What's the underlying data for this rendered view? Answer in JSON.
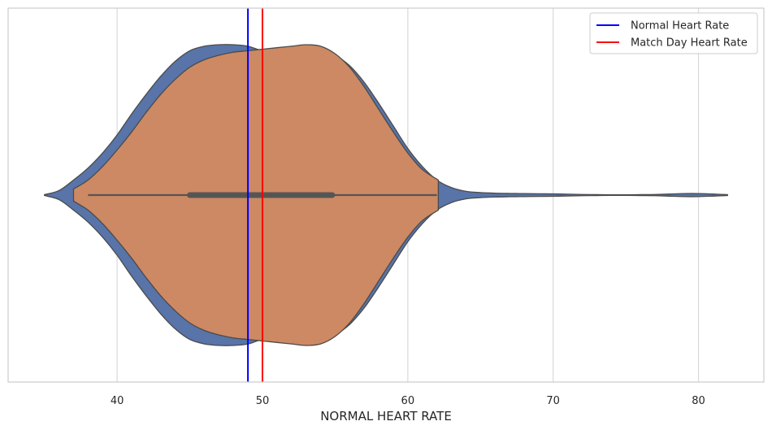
{
  "chart_data": {
    "type": "violin",
    "title": "",
    "xlabel": "NORMAL HEART RATE",
    "ylabel": "",
    "xlim": [
      32.5,
      84.5
    ],
    "xticks": [
      40,
      50,
      60,
      70,
      80
    ],
    "xtick_labels": [
      "40",
      "50",
      "60",
      "70",
      "80"
    ],
    "grid": "vertical",
    "series": [
      {
        "color": "#5874a9",
        "density": {
          "x": [
            35,
            36,
            37,
            38,
            39,
            40,
            41,
            42,
            43,
            44,
            45,
            46,
            47,
            48,
            49,
            50,
            51,
            52,
            53,
            54,
            55,
            56,
            57,
            58,
            59,
            60,
            61,
            62,
            63,
            64,
            65,
            66,
            67,
            68,
            69,
            70,
            71,
            72,
            73,
            74,
            75,
            76,
            77,
            78,
            79,
            80,
            81,
            82
          ],
          "w": [
            0.003,
            0.03,
            0.1,
            0.18,
            0.28,
            0.4,
            0.54,
            0.67,
            0.79,
            0.89,
            0.96,
            0.99,
            1.0,
            1.0,
            0.99,
            0.96,
            0.96,
            0.97,
            0.98,
            0.97,
            0.93,
            0.86,
            0.75,
            0.61,
            0.46,
            0.31,
            0.19,
            0.1,
            0.05,
            0.025,
            0.017,
            0.013,
            0.011,
            0.01,
            0.009,
            0.008,
            0.006,
            0.004,
            0.003,
            0.002,
            0.002,
            0.003,
            0.004,
            0.007,
            0.01,
            0.01,
            0.007,
            0.003
          ]
        }
      },
      {
        "color": "#cd8963",
        "density": {
          "x": [
            37,
            38,
            39,
            40,
            41,
            42,
            43,
            44,
            45,
            46,
            47,
            48,
            49,
            50,
            51,
            52,
            53,
            54,
            55,
            56,
            57,
            58,
            59,
            60,
            61,
            62.1
          ],
          "w": [
            0.04,
            0.1,
            0.19,
            0.3,
            0.42,
            0.55,
            0.67,
            0.77,
            0.85,
            0.9,
            0.93,
            0.95,
            0.96,
            0.97,
            0.98,
            0.99,
            1.0,
            0.99,
            0.94,
            0.85,
            0.72,
            0.57,
            0.42,
            0.28,
            0.17,
            0.1
          ]
        }
      }
    ],
    "box": {
      "whisker_low": 38,
      "q1": 45,
      "q3": 54.8,
      "whisker_high": 62,
      "color": "#555555"
    },
    "reference_lines": [
      {
        "name": "Normal Heart Rate",
        "x": 49,
        "color": "#0000ff"
      },
      {
        "name": "Match Day Heart Rate",
        "x": 50,
        "color": "#ff0000"
      }
    ],
    "legend": {
      "position": "top-right",
      "entries": [
        "Normal Heart Rate",
        "Match Day Heart Rate"
      ]
    }
  }
}
